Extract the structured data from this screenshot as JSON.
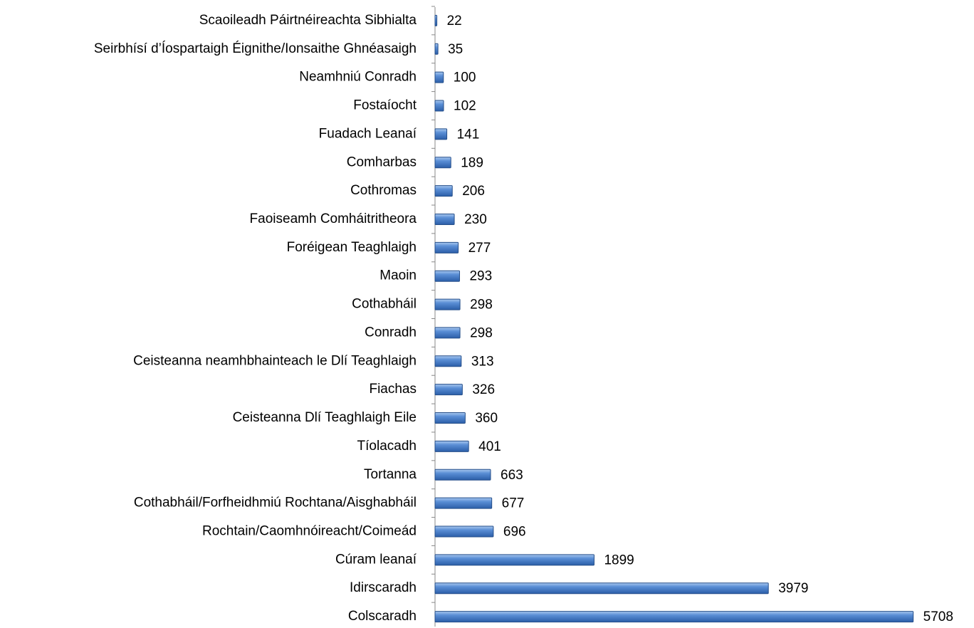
{
  "chart_data": {
    "type": "hbar",
    "categories": [
      "Scaoileadh Páirtnéireachta Sibhialta",
      "Seirbhísí d’Íospartaigh Éignithe/Ionsaithe Ghnéasaigh",
      "Neamhniú Conradh",
      "Fostaíocht",
      "Fuadach Leanaí",
      "Comharbas",
      "Cothromas",
      "Faoiseamh Comháitritheora",
      "Foréigean Teaghlaigh",
      "Maoin",
      "Cothabháil",
      "Conradh",
      "Ceisteanna neamhbhainteach le Dlí Teaghlaigh",
      "Fiachas",
      "Ceisteanna Dlí Teaghlaigh Eile",
      "Tíolacadh",
      "Tortanna",
      "Cothabháil/Forfheidhmiú Rochtana/Aisghabháil",
      "Rochtain/Caomhnóireacht/Coimeád",
      "Cúram leanaí",
      "Idirscaradh",
      "Colscaradh"
    ],
    "values": [
      22,
      35,
      100,
      102,
      141,
      189,
      206,
      230,
      277,
      293,
      298,
      298,
      313,
      326,
      360,
      401,
      663,
      677,
      696,
      1899,
      3979,
      5708
    ],
    "color": "#4f81bd",
    "xlim": [
      0,
      6000
    ]
  }
}
